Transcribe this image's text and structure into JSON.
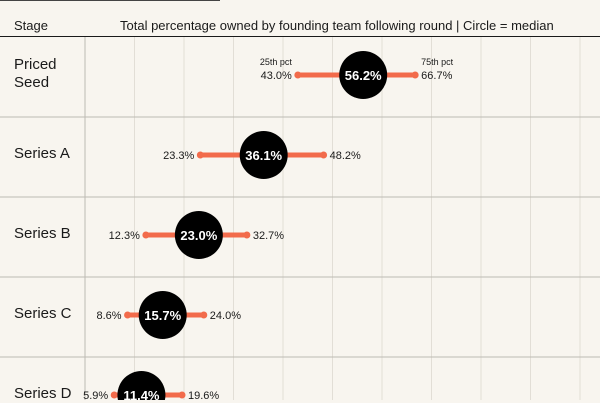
{
  "header": {
    "stage": "Stage",
    "title": "Total percentage owned by founding team following round | Circle = median"
  },
  "chart_data": {
    "type": "dot-range",
    "xlim": [
      0,
      100
    ],
    "grid": true,
    "range_label_low": "25th pct",
    "range_label_high": "75th pct",
    "colors": {
      "range": "#f26b4b",
      "median": "#000000",
      "grid": "#e2ded6",
      "rule": "#bdbab3"
    },
    "rows": [
      {
        "stage": "Priced\nSeed",
        "p25": 43.0,
        "median": 56.2,
        "p75": 66.7,
        "p25_label": "43.0%",
        "median_label": "56.2%",
        "p75_label": "66.7%"
      },
      {
        "stage": "Series A",
        "p25": 23.3,
        "median": 36.1,
        "p75": 48.2,
        "p25_label": "23.3%",
        "median_label": "36.1%",
        "p75_label": "48.2%"
      },
      {
        "stage": "Series B",
        "p25": 12.3,
        "median": 23.0,
        "p75": 32.7,
        "p25_label": "12.3%",
        "median_label": "23.0%",
        "p75_label": "32.7%"
      },
      {
        "stage": "Series C",
        "p25": 8.6,
        "median": 15.7,
        "p75": 24.0,
        "p25_label": "8.6%",
        "median_label": "15.7%",
        "p75_label": "24.0%"
      },
      {
        "stage": "Series D",
        "p25": 5.9,
        "median": 11.4,
        "p75": 19.6,
        "p25_label": "5.9%",
        "median_label": "11.4%",
        "p75_label": "19.6%"
      }
    ]
  }
}
